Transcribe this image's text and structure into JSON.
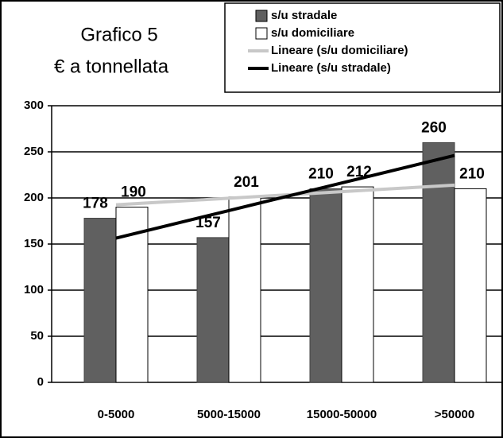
{
  "chart_data": {
    "type": "bar",
    "title": "Grafico 5",
    "subtitle": "€ a tonnellata",
    "categories": [
      "0-5000",
      "5000-15000",
      "15000-50000",
      ">50000"
    ],
    "series": [
      {
        "name": "s/u stradale",
        "color": "#606060",
        "values": [
          178,
          157,
          210,
          260
        ]
      },
      {
        "name": "s/u domiciliare",
        "color": "#ffffff",
        "values": [
          190,
          201,
          212,
          210
        ]
      }
    ],
    "trendlines": [
      {
        "name": "Lineare (s/u domiciliare)",
        "color": "#c8c8c8",
        "values": [
          192.6,
          199.7,
          206.8,
          213.9
        ]
      },
      {
        "name": "Lineare (s/u stradale)",
        "color": "#000000",
        "values": [
          156.4,
          186.3,
          216.2,
          246.1
        ]
      }
    ],
    "ylim": [
      0,
      300
    ],
    "yticks": [
      0,
      50,
      100,
      150,
      200,
      250,
      300
    ],
    "grid": true
  }
}
